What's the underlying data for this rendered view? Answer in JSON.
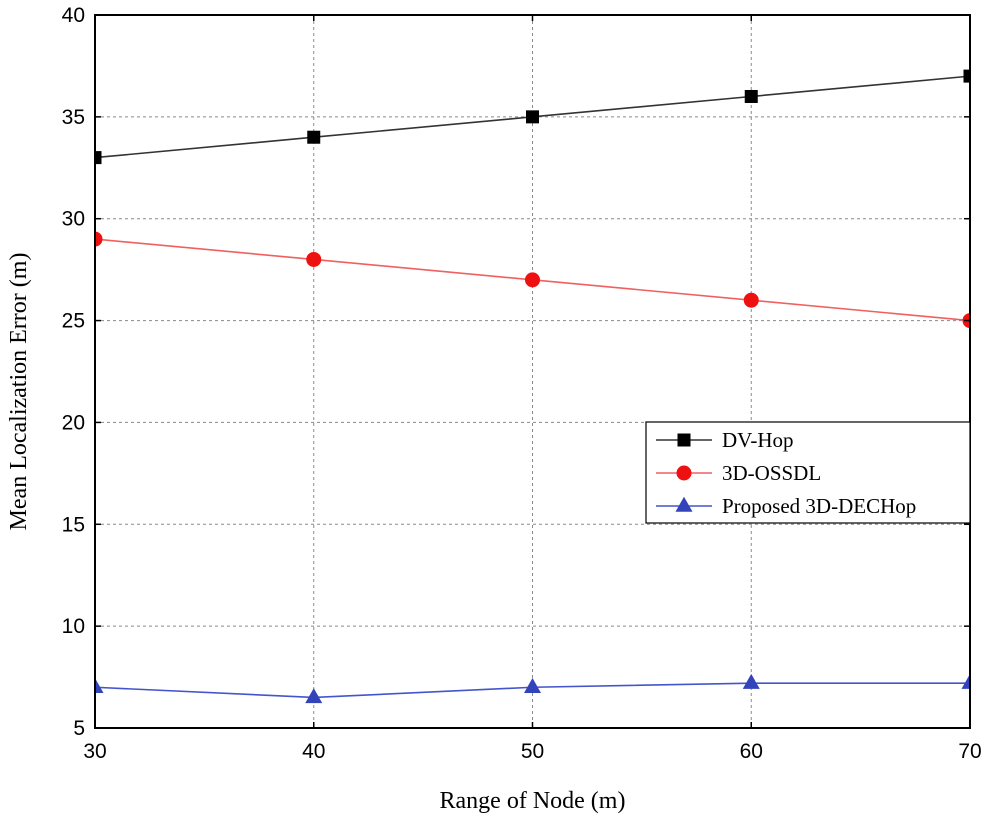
{
  "chart_data": {
    "type": "line",
    "title": "",
    "xlabel": "Range of Node (m)",
    "ylabel": "Mean Localization Error (m)",
    "x": [
      30,
      40,
      50,
      60,
      70
    ],
    "xlim": [
      30,
      70
    ],
    "ylim": [
      5,
      40
    ],
    "xticks": [
      30,
      40,
      50,
      60,
      70
    ],
    "yticks": [
      5,
      10,
      15,
      20,
      25,
      30,
      35,
      40
    ],
    "grid": true,
    "legend_position": "center-right",
    "series": [
      {
        "name": "DV-Hop",
        "values": [
          33,
          34,
          35,
          36,
          37
        ],
        "color": "#000000",
        "line_color": "#333333",
        "marker": "square"
      },
      {
        "name": "3D-OSSDL",
        "values": [
          29,
          28,
          27,
          26,
          25
        ],
        "color": "#ee1111",
        "line_color": "#f06060",
        "marker": "circle"
      },
      {
        "name": "Proposed 3D-DECHop",
        "values": [
          7,
          6.5,
          7,
          7.2,
          7.2
        ],
        "color": "#3344bb",
        "line_color": "#4455cc",
        "marker": "triangle"
      }
    ]
  }
}
